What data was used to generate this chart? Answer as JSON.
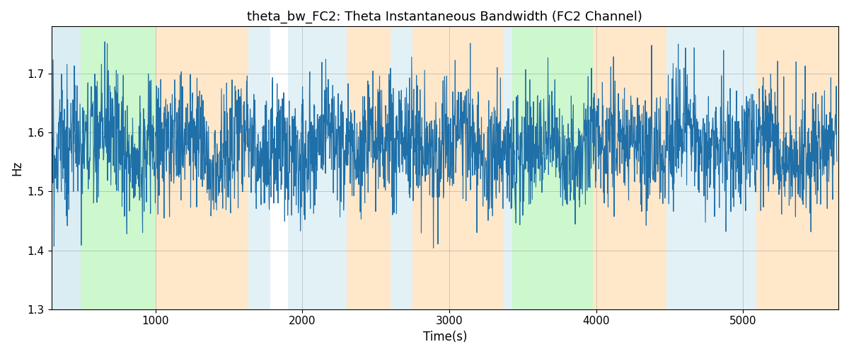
{
  "title": "theta_bw_FC2: Theta Instantaneous Bandwidth (FC2 Channel)",
  "xlabel": "Time(s)",
  "ylabel": "Hz",
  "xlim": [
    290,
    5650
  ],
  "ylim": [
    1.3,
    1.78
  ],
  "line_color": "#1f6fa8",
  "line_width": 0.8,
  "background_regions": [
    {
      "xmin": 290,
      "xmax": 490,
      "color": "#add8e6",
      "alpha": 0.45
    },
    {
      "xmin": 490,
      "xmax": 1000,
      "color": "#90ee90",
      "alpha": 0.45
    },
    {
      "xmin": 1000,
      "xmax": 1630,
      "color": "#ffd59f",
      "alpha": 0.55
    },
    {
      "xmin": 1630,
      "xmax": 1780,
      "color": "#add8e6",
      "alpha": 0.35
    },
    {
      "xmin": 1780,
      "xmax": 1900,
      "color": "#ffffff",
      "alpha": 0.0
    },
    {
      "xmin": 1900,
      "xmax": 2300,
      "color": "#add8e6",
      "alpha": 0.35
    },
    {
      "xmin": 2300,
      "xmax": 2600,
      "color": "#ffd59f",
      "alpha": 0.55
    },
    {
      "xmin": 2600,
      "xmax": 2750,
      "color": "#add8e6",
      "alpha": 0.35
    },
    {
      "xmin": 2750,
      "xmax": 3370,
      "color": "#ffd59f",
      "alpha": 0.55
    },
    {
      "xmin": 3370,
      "xmax": 3430,
      "color": "#add8e6",
      "alpha": 0.35
    },
    {
      "xmin": 3430,
      "xmax": 3470,
      "color": "#90ee90",
      "alpha": 0.45
    },
    {
      "xmin": 3470,
      "xmax": 3980,
      "color": "#90ee90",
      "alpha": 0.45
    },
    {
      "xmin": 3980,
      "xmax": 4480,
      "color": "#ffd59f",
      "alpha": 0.55
    },
    {
      "xmin": 4480,
      "xmax": 5090,
      "color": "#add8e6",
      "alpha": 0.35
    },
    {
      "xmin": 5090,
      "xmax": 5650,
      "color": "#ffd59f",
      "alpha": 0.55
    }
  ],
  "seed": 2023,
  "num_points": 2600,
  "x_start": 290,
  "x_end": 5640,
  "base_value": 1.578,
  "noise_std": 0.055,
  "title_fontsize": 13,
  "tick_fontsize": 11,
  "label_fontsize": 12,
  "figsize": [
    12,
    5
  ],
  "dpi": 100
}
